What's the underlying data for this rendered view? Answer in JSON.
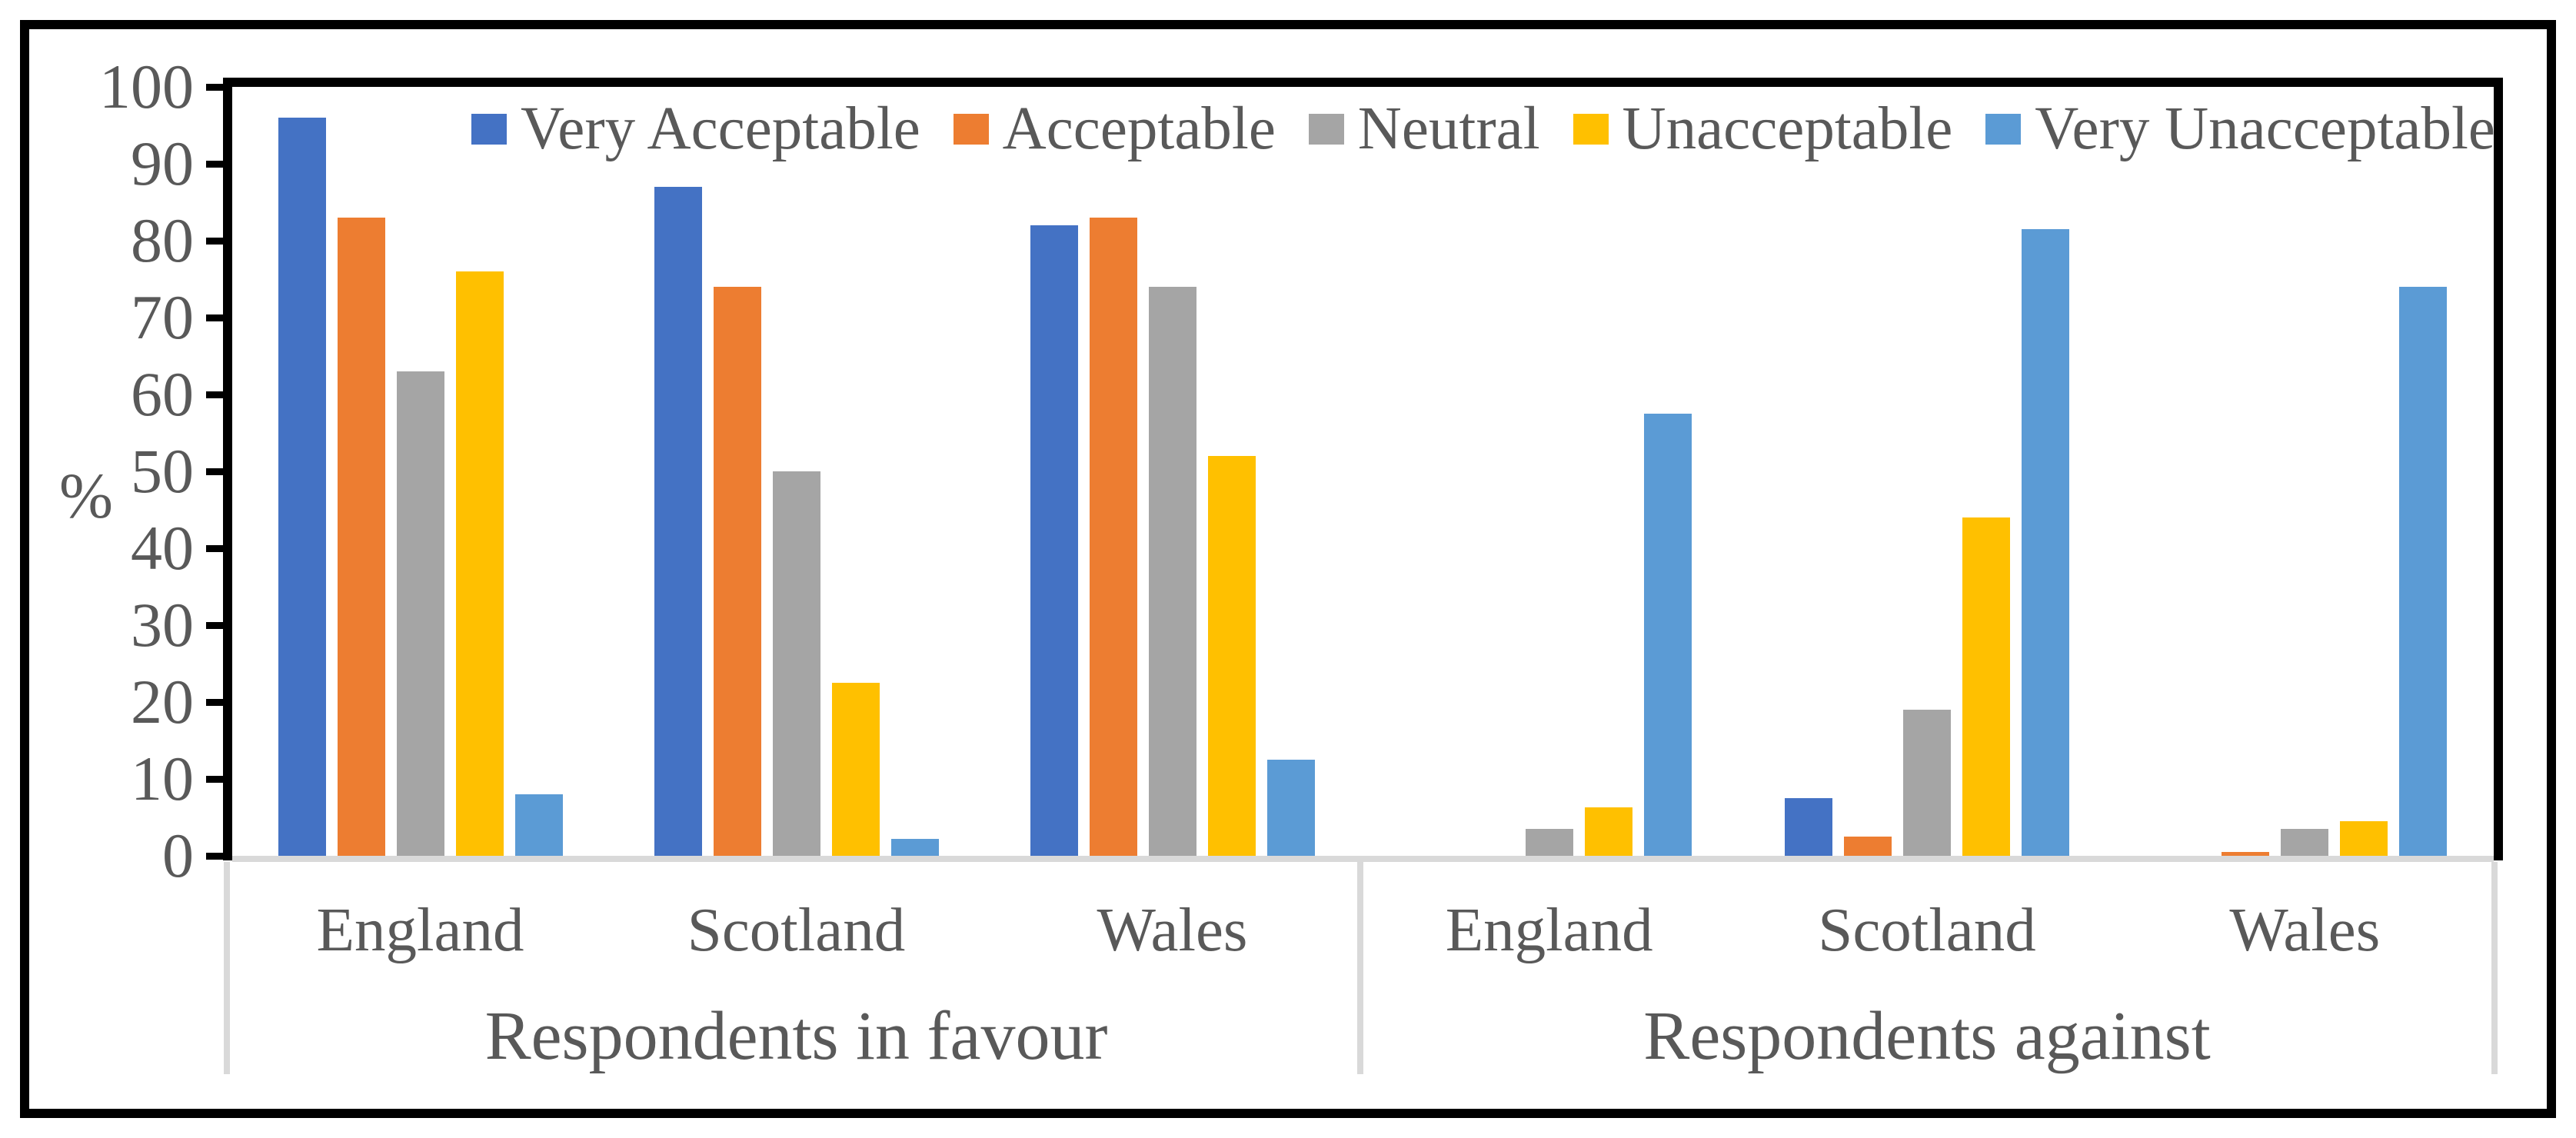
{
  "colors": {
    "background": "#FFFFFF",
    "axis": "#000000",
    "text": "#595959",
    "category_lines": "#D9D9D9"
  },
  "chart_data": {
    "type": "bar",
    "title": "",
    "ylabel": "%",
    "xlabel": "",
    "legend_position": "top",
    "grid": false,
    "y_axis": {
      "min": 0,
      "max": 100,
      "step": 10,
      "tick_labels": [
        "100",
        "90",
        "80",
        "70",
        "60",
        "50",
        "40",
        "30",
        "20",
        "10",
        "0"
      ]
    },
    "series": [
      {
        "name": "Very Acceptable",
        "color": "#4472C4"
      },
      {
        "name": "Acceptable",
        "color": "#ED7D31"
      },
      {
        "name": "Neutral",
        "color": "#A5A5A5"
      },
      {
        "name": "Unacceptable",
        "color": "#FFC000"
      },
      {
        "name": "Very Unacceptable",
        "color": "#5B9BD5"
      }
    ],
    "half_labels": [
      "Respondents in favour",
      "Respondents against"
    ],
    "groups": [
      {
        "half": "Respondents in favour",
        "category": "England",
        "values": [
          96,
          83,
          63,
          76,
          8
        ]
      },
      {
        "half": "Respondents in favour",
        "category": "Scotland",
        "values": [
          87,
          74,
          50,
          22.5,
          2.2
        ]
      },
      {
        "half": "Respondents in favour",
        "category": "Wales",
        "values": [
          82,
          83,
          74,
          52,
          12.5
        ]
      },
      {
        "half": "Respondents against",
        "category": "England",
        "values": [
          0,
          0,
          3.5,
          6.3,
          57.5
        ]
      },
      {
        "half": "Respondents against",
        "category": "Scotland",
        "values": [
          7.5,
          2.5,
          19,
          44,
          81.5
        ]
      },
      {
        "half": "Respondents against",
        "category": "Wales",
        "values": [
          0,
          0.5,
          3.5,
          4.5,
          74
        ]
      }
    ]
  }
}
